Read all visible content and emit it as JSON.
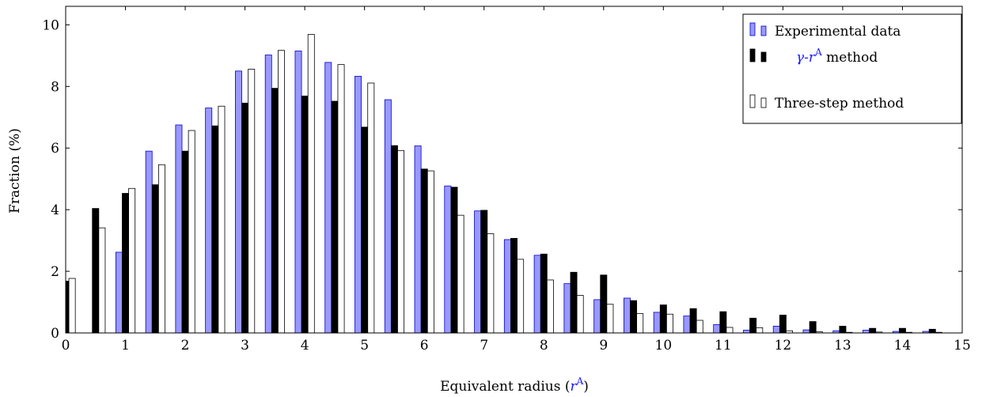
{
  "chart_data": {
    "type": "bar",
    "xlabel_text": "Equivalent radius (",
    "xlabel_symbol": "r",
    "xlabel_sup": "A",
    "xlabel_close": ")",
    "ylabel": "Fraction (%)",
    "xlim": [
      0,
      15
    ],
    "ylim": [
      0,
      10.6
    ],
    "xticks": [
      0,
      1,
      2,
      3,
      4,
      5,
      6,
      7,
      8,
      9,
      10,
      11,
      12,
      13,
      14,
      15
    ],
    "yticks": [
      0,
      2,
      4,
      6,
      8,
      10
    ],
    "bin_width": 0.5,
    "legend_position": "top-right",
    "x": [
      0,
      0.5,
      1,
      1.5,
      2,
      2.5,
      3,
      3.5,
      4,
      4.5,
      5,
      5.5,
      6,
      6.5,
      7,
      7.5,
      8,
      8.5,
      9,
      9.5,
      10,
      10.5,
      11,
      11.5,
      12,
      12.5,
      13,
      13.5,
      14,
      14.5,
      15
    ],
    "series": [
      {
        "name": "Experimental data",
        "color": "#9999ff",
        "values": [
          0,
          0,
          2.62,
          5.9,
          6.75,
          7.3,
          8.5,
          9.02,
          9.15,
          8.78,
          8.33,
          7.57,
          6.07,
          4.77,
          3.96,
          3.03,
          2.52,
          1.6,
          1.08,
          1.13,
          0.67,
          0.55,
          0.27,
          0.09,
          0.22,
          0.1,
          0.07,
          0.09,
          0.05,
          0.05,
          0
        ]
      },
      {
        "name_symbol": "γ",
        "name_mid": "-",
        "name_r": "r",
        "name_sup": "A",
        "name_rest": " method",
        "color": "#000000",
        "values": [
          1.68,
          4.04,
          4.53,
          4.81,
          5.9,
          6.72,
          7.46,
          7.94,
          7.69,
          7.52,
          6.68,
          6.08,
          5.32,
          4.73,
          3.98,
          3.07,
          2.56,
          1.97,
          1.88,
          1.05,
          0.91,
          0.79,
          0.69,
          0.48,
          0.58,
          0.37,
          0.22,
          0.15,
          0.15,
          0.12,
          0
        ]
      },
      {
        "name": "Three-step method",
        "color": "#ffffff",
        "values": [
          1.77,
          3.41,
          4.69,
          5.46,
          6.57,
          7.36,
          8.56,
          9.17,
          9.69,
          8.71,
          8.11,
          5.92,
          5.26,
          3.82,
          3.22,
          2.39,
          1.72,
          1.22,
          0.93,
          0.63,
          0.61,
          0.41,
          0.18,
          0.17,
          0.07,
          0.04,
          0.02,
          0.03,
          0.02,
          0.02,
          0
        ]
      }
    ]
  }
}
